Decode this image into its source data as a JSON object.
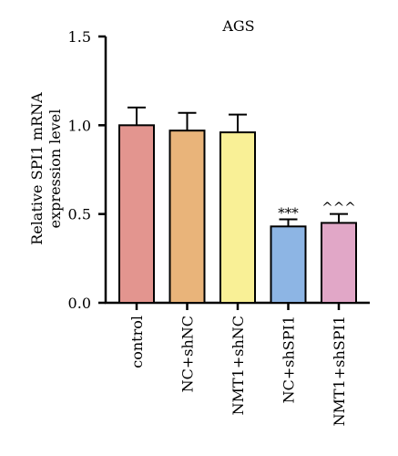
{
  "chart_data": {
    "type": "bar",
    "title": "AGS",
    "ylabel_line1": "Relative SPI1 mRNA",
    "ylabel_line2": "expression level",
    "xlabel": "",
    "ylim": [
      0,
      1.5
    ],
    "yticks": [
      "0.0",
      "0.5",
      "1.0",
      "1.5"
    ],
    "ytick_values": [
      0.0,
      0.5,
      1.0,
      1.5
    ],
    "categories": [
      "control",
      "NC+shNC",
      "NMT1+shNC",
      "NC+shSPI1",
      "NMT1+shSPI1"
    ],
    "values": [
      1.0,
      0.97,
      0.96,
      0.43,
      0.45
    ],
    "errors": [
      0.1,
      0.1,
      0.1,
      0.04,
      0.05
    ],
    "annotations": [
      "",
      "",
      "",
      "***",
      "^^^"
    ],
    "colors": [
      "#e3958f",
      "#e9b47a",
      "#f9f096",
      "#8db5e4",
      "#e1a7c7"
    ],
    "grid": false,
    "legend": "none"
  }
}
